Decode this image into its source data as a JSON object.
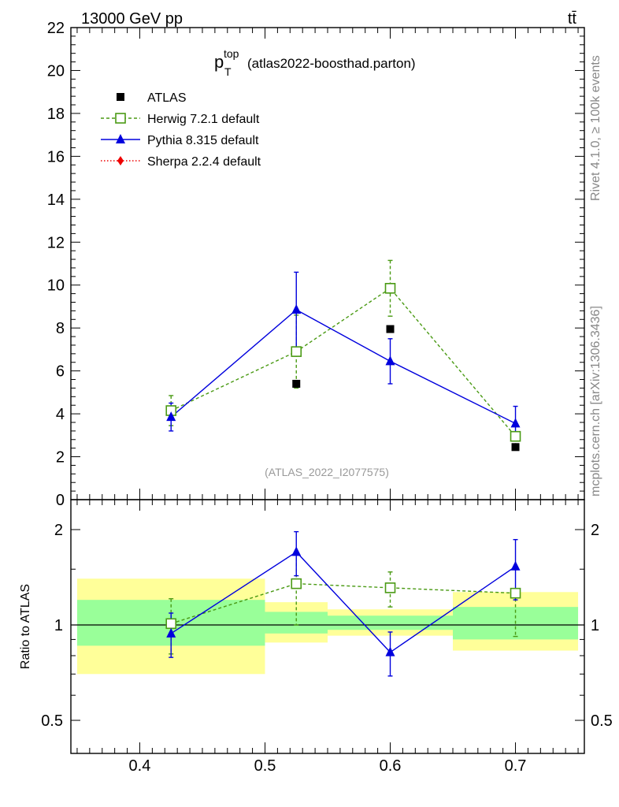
{
  "header": {
    "left_label": "13000 GeV pp",
    "right_label": "tt̄"
  },
  "side_labels": {
    "rivet": "Rivet 4.1.0, ≥ 100k events",
    "mcplots": "mcplots.cern.ch [arXiv:1306.3436]"
  },
  "chart_data": [
    {
      "type": "line",
      "panel": "main",
      "title_main": "p",
      "title_sub": "T",
      "title_sup": "top",
      "title_suffix": "(atlas2022-boosthad.parton)",
      "watermark": "(ATLAS_2022_I2077575)",
      "ylim": [
        0,
        22
      ],
      "yticks": [
        0,
        2,
        4,
        6,
        8,
        10,
        12,
        14,
        16,
        18,
        20,
        22
      ],
      "ytick_labels": [
        "0",
        "2",
        "4",
        "6",
        "8",
        "10",
        "12",
        "14",
        "16",
        "18",
        "20",
        "22"
      ],
      "series": [
        {
          "name": "ATLAS",
          "color": "#000000",
          "x": [
            0.425,
            0.525,
            0.6,
            0.7
          ],
          "y": [
            4.1,
            5.4,
            7.95,
            2.45
          ]
        },
        {
          "name": "Herwig 7.2.1 default",
          "color": "#4a9a14",
          "x": [
            0.425,
            0.525,
            0.6,
            0.7
          ],
          "y": [
            4.15,
            6.9,
            9.85,
            2.95
          ],
          "err_up": [
            0.7,
            1.7,
            1.3,
            0.2
          ],
          "err_down": [
            0.7,
            1.7,
            1.3,
            0.5
          ]
        },
        {
          "name": "Pythia 8.315 default",
          "color": "#0000dd",
          "x": [
            0.425,
            0.525,
            0.6,
            0.7
          ],
          "y": [
            3.85,
            8.85,
            6.45,
            3.55
          ],
          "err_up": [
            0.65,
            1.75,
            1.05,
            0.8
          ],
          "err_down": [
            0.65,
            1.75,
            1.05,
            0.8
          ]
        },
        {
          "name": "Sherpa 2.2.4 default",
          "color": "#ee0000",
          "x": [],
          "y": []
        }
      ]
    },
    {
      "type": "line",
      "panel": "ratio",
      "ylabel": "Ratio to ATLAS",
      "ylim": [
        0.42,
        2.3
      ],
      "yscale": "log",
      "yticks_major": [
        0.5,
        1,
        2
      ],
      "ytick_labels": [
        "0.5",
        "1",
        "2"
      ],
      "yticks_minor": [
        0.6,
        0.7,
        0.8,
        0.9,
        1.5
      ],
      "xlim": [
        0.345,
        0.755
      ],
      "xticks_major": [
        0.4,
        0.5,
        0.6,
        0.7
      ],
      "xtick_labels": [
        "0.4",
        "0.5",
        "0.6",
        "0.7"
      ],
      "bands": [
        {
          "x0": 0.35,
          "x1": 0.5,
          "yellow": [
            0.7,
            1.4
          ],
          "green": [
            0.86,
            1.2
          ]
        },
        {
          "x0": 0.5,
          "x1": 0.55,
          "yellow": [
            0.88,
            1.18
          ],
          "green": [
            0.94,
            1.1
          ]
        },
        {
          "x0": 0.55,
          "x1": 0.65,
          "yellow": [
            0.925,
            1.12
          ],
          "green": [
            0.965,
            1.07
          ]
        },
        {
          "x0": 0.65,
          "x1": 0.75,
          "yellow": [
            0.83,
            1.27
          ],
          "green": [
            0.9,
            1.14
          ]
        }
      ],
      "series": [
        {
          "name": "Herwig 7.2.1 default",
          "color": "#4a9a14",
          "x": [
            0.425,
            0.525,
            0.6,
            0.7
          ],
          "y": [
            1.01,
            1.35,
            1.31,
            1.26
          ],
          "err_up": [
            0.2,
            0.35,
            0.16,
            0.0
          ],
          "err_down": [
            0.2,
            0.35,
            0.17,
            0.34
          ]
        },
        {
          "name": "Pythia 8.315 default",
          "color": "#0000dd",
          "x": [
            0.425,
            0.525,
            0.6,
            0.7
          ],
          "y": [
            0.94,
            1.7,
            0.82,
            1.53
          ],
          "err_up": [
            0.15,
            0.27,
            0.13,
            0.33
          ],
          "err_down": [
            0.15,
            0.27,
            0.13,
            0.33
          ]
        }
      ]
    }
  ]
}
